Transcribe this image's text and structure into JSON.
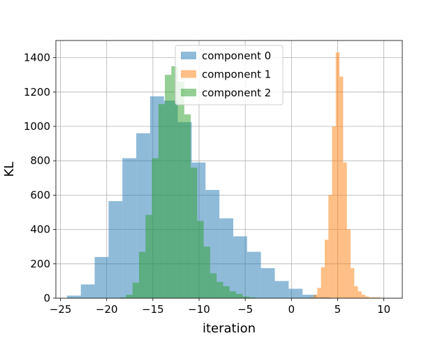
{
  "chart_data": {
    "type": "histogram",
    "title": "",
    "xlabel": "iteration",
    "ylabel": "KL",
    "xlim": [
      -25.5,
      12
    ],
    "ylim": [
      0,
      1500
    ],
    "xticks": [
      -25,
      -20,
      -15,
      -10,
      -5,
      0,
      5,
      10
    ],
    "yticks": [
      0,
      200,
      400,
      600,
      800,
      1000,
      1200,
      1400
    ],
    "grid": true,
    "legend_position": "upper center",
    "bar_opacity": 0.5,
    "series": [
      {
        "name": "component 0",
        "color": "#1f77b4",
        "bin_edges": [
          -24.3,
          -22.8,
          -21.3,
          -19.8,
          -18.3,
          -16.8,
          -15.3,
          -13.8,
          -12.3,
          -10.8,
          -9.3,
          -7.8,
          -6.3,
          -4.8,
          -3.3,
          -1.8,
          -0.3,
          1.2,
          2.7,
          4.2
        ],
        "counts": [
          15,
          80,
          240,
          565,
          815,
          960,
          1175,
          1150,
          1025,
          790,
          630,
          465,
          360,
          270,
          175,
          100,
          55,
          20,
          5
        ]
      },
      {
        "name": "component 1",
        "color": "#ff7f0e",
        "bin_edges": [
          2.0,
          2.4,
          2.8,
          3.2,
          3.6,
          4.0,
          4.4,
          4.8,
          5.2,
          5.6,
          6.0,
          6.4,
          6.8,
          7.2,
          7.6,
          8.0,
          8.4,
          8.8,
          9.2,
          9.6,
          10.0,
          10.4,
          10.8
        ],
        "counts": [
          5,
          20,
          60,
          180,
          340,
          600,
          1000,
          1430,
          1290,
          790,
          400,
          175,
          70,
          40,
          20,
          10,
          5,
          5,
          5,
          2,
          2,
          1
        ]
      },
      {
        "name": "component 2",
        "color": "#2ca02c",
        "bin_edges": [
          -18.6,
          -17.9,
          -17.2,
          -16.5,
          -15.8,
          -15.1,
          -14.4,
          -13.7,
          -13.0,
          -12.3,
          -11.6,
          -10.9,
          -10.2,
          -9.5,
          -8.8,
          -8.1,
          -7.4,
          -6.7,
          -6.0,
          -5.3,
          -4.6,
          -3.9,
          -3.2
        ],
        "counts": [
          5,
          20,
          90,
          270,
          485,
          815,
          1130,
          1300,
          1350,
          1260,
          1070,
          760,
          450,
          300,
          145,
          95,
          70,
          40,
          25,
          10,
          5,
          1
        ]
      }
    ]
  }
}
